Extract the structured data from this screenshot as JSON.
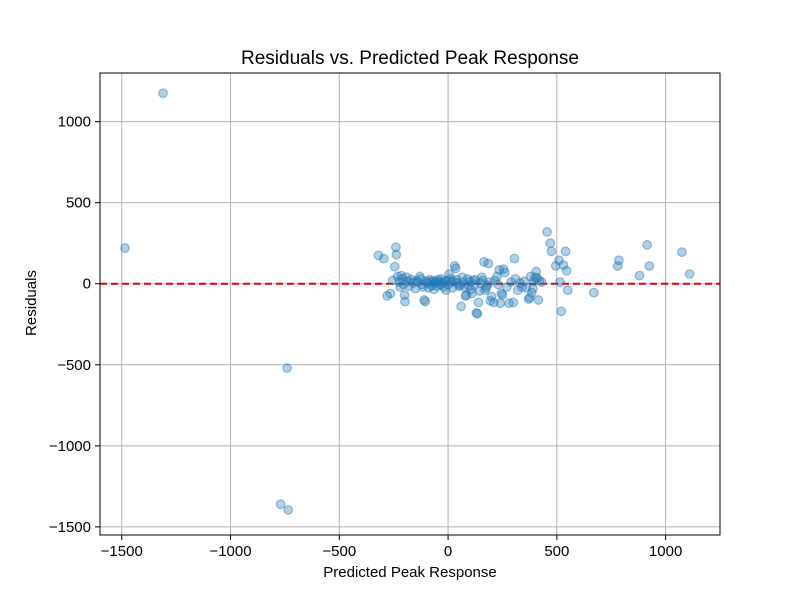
{
  "chart_data": {
    "type": "scatter",
    "title": "Residuals vs. Predicted Peak Response",
    "xlabel": "Predicted Peak Response",
    "ylabel": "Residuals",
    "xlim": [
      -1600,
      1250
    ],
    "ylim": [
      -1550,
      1300
    ],
    "xticks": [
      -1500,
      -1000,
      -500,
      0,
      500,
      1000
    ],
    "yticks": [
      -1500,
      -1000,
      -500,
      0,
      500,
      1000
    ],
    "xtick_labels": [
      "−1500",
      "−1000",
      "−500",
      "0",
      "500",
      "1000"
    ],
    "ytick_labels": [
      "−1500",
      "−1000",
      "−500",
      "0",
      "500",
      "1000"
    ],
    "grid": true,
    "reference_line": {
      "y": 0,
      "color": "#e00000",
      "style": "dashed"
    },
    "marker_color": "#1f77b4",
    "marker_alpha": 0.35,
    "points": [
      [
        -1485,
        220
      ],
      [
        -1310,
        1175
      ],
      [
        -740,
        -520
      ],
      [
        -770,
        -1360
      ],
      [
        -735,
        -1395
      ],
      [
        -320,
        175
      ],
      [
        -295,
        155
      ],
      [
        -280,
        -75
      ],
      [
        -265,
        -60
      ],
      [
        -255,
        20
      ],
      [
        -245,
        105
      ],
      [
        -240,
        225
      ],
      [
        -238,
        180
      ],
      [
        -232,
        45
      ],
      [
        -225,
        10
      ],
      [
        -220,
        -20
      ],
      [
        -215,
        50
      ],
      [
        -210,
        30
      ],
      [
        -205,
        -5
      ],
      [
        -200,
        -70
      ],
      [
        -198,
        -110
      ],
      [
        -190,
        40
      ],
      [
        -185,
        15
      ],
      [
        -180,
        -15
      ],
      [
        -170,
        25
      ],
      [
        -160,
        5
      ],
      [
        -150,
        -30
      ],
      [
        -145,
        20
      ],
      [
        -140,
        10
      ],
      [
        -130,
        45
      ],
      [
        -125,
        30
      ],
      [
        -120,
        -5
      ],
      [
        -115,
        -20
      ],
      [
        -110,
        -100
      ],
      [
        -105,
        -110
      ],
      [
        -100,
        15
      ],
      [
        -95,
        5
      ],
      [
        -90,
        -25
      ],
      [
        -85,
        25
      ],
      [
        -80,
        10
      ],
      [
        -75,
        -10
      ],
      [
        -70,
        20
      ],
      [
        -65,
        -35
      ],
      [
        -60,
        5
      ],
      [
        -55,
        15
      ],
      [
        -50,
        -15
      ],
      [
        -45,
        25
      ],
      [
        -40,
        10
      ],
      [
        -35,
        -5
      ],
      [
        -30,
        30
      ],
      [
        -25,
        5
      ],
      [
        -20,
        -20
      ],
      [
        -15,
        15
      ],
      [
        -10,
        -40
      ],
      [
        -5,
        20
      ],
      [
        0,
        -5
      ],
      [
        5,
        60
      ],
      [
        10,
        30
      ],
      [
        15,
        10
      ],
      [
        20,
        -25
      ],
      [
        25,
        15
      ],
      [
        30,
        110
      ],
      [
        35,
        95
      ],
      [
        40,
        25
      ],
      [
        45,
        5
      ],
      [
        50,
        -15
      ],
      [
        55,
        -10
      ],
      [
        60,
        -140
      ],
      [
        65,
        40
      ],
      [
        70,
        10
      ],
      [
        75,
        -20
      ],
      [
        80,
        -75
      ],
      [
        85,
        -70
      ],
      [
        90,
        30
      ],
      [
        95,
        -10
      ],
      [
        100,
        15
      ],
      [
        105,
        -35
      ],
      [
        110,
        -60
      ],
      [
        115,
        20
      ],
      [
        120,
        -5
      ],
      [
        125,
        25
      ],
      [
        130,
        -180
      ],
      [
        135,
        -185
      ],
      [
        140,
        -115
      ],
      [
        145,
        -45
      ],
      [
        150,
        5
      ],
      [
        155,
        40
      ],
      [
        160,
        20
      ],
      [
        165,
        135
      ],
      [
        170,
        -40
      ],
      [
        175,
        -25
      ],
      [
        180,
        -10
      ],
      [
        185,
        125
      ],
      [
        190,
        10
      ],
      [
        195,
        -105
      ],
      [
        200,
        -80
      ],
      [
        210,
        -115
      ],
      [
        215,
        20
      ],
      [
        225,
        45
      ],
      [
        230,
        -5
      ],
      [
        235,
        85
      ],
      [
        240,
        -120
      ],
      [
        245,
        -60
      ],
      [
        250,
        -70
      ],
      [
        255,
        90
      ],
      [
        260,
        70
      ],
      [
        270,
        -20
      ],
      [
        280,
        -120
      ],
      [
        290,
        10
      ],
      [
        300,
        -115
      ],
      [
        305,
        155
      ],
      [
        310,
        30
      ],
      [
        320,
        -40
      ],
      [
        330,
        5
      ],
      [
        340,
        -20
      ],
      [
        350,
        15
      ],
      [
        360,
        -25
      ],
      [
        370,
        -95
      ],
      [
        375,
        -85
      ],
      [
        380,
        45
      ],
      [
        385,
        -55
      ],
      [
        390,
        -30
      ],
      [
        395,
        15
      ],
      [
        400,
        40
      ],
      [
        405,
        75
      ],
      [
        410,
        35
      ],
      [
        415,
        -100
      ],
      [
        420,
        20
      ],
      [
        430,
        10
      ],
      [
        455,
        320
      ],
      [
        470,
        250
      ],
      [
        475,
        200
      ],
      [
        495,
        110
      ],
      [
        510,
        145
      ],
      [
        515,
        10
      ],
      [
        520,
        -170
      ],
      [
        530,
        115
      ],
      [
        540,
        200
      ],
      [
        545,
        80
      ],
      [
        550,
        -40
      ],
      [
        670,
        -55
      ],
      [
        780,
        110
      ],
      [
        785,
        145
      ],
      [
        880,
        50
      ],
      [
        915,
        240
      ],
      [
        925,
        110
      ],
      [
        1075,
        195
      ],
      [
        1110,
        60
      ]
    ]
  }
}
